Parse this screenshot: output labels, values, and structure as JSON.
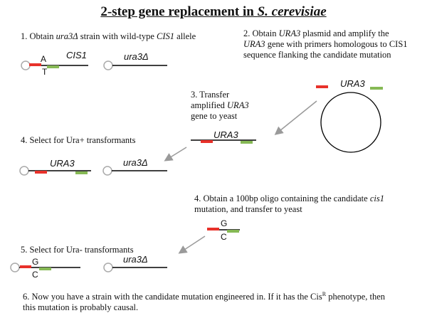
{
  "title": {
    "pre": "2-step gene replacement in ",
    "species": "S. cerevisiae"
  },
  "steps": {
    "s1": {
      "pre": "1. Obtain ",
      "gene": "ura3Δ",
      "mid": " strain with wild-type ",
      "gene2": "CIS1",
      "post": " allele"
    },
    "s2": {
      "l1_pre": "2. Obtain ",
      "l1_gene": "URA3",
      "l1_post": " plasmid and amplify the",
      "l2_gene": "URA3",
      "l2_post": " gene with primers homologous to CIS1",
      "l3": "sequence flanking the candidate mutation"
    },
    "s3": {
      "l1": "3. Transfer",
      "l2": "amplified ",
      "l2_gene": "URA3",
      "l3": "gene to yeast"
    },
    "s4": {
      "text": "4. Select for Ura+ transformants"
    },
    "s4b": {
      "l1": "4. Obtain a 100bp oligo containing the candidate ",
      "l1_gene": "cis1",
      "l2": "mutation, and transfer to yeast"
    },
    "s5": {
      "text": "5. Select for Ura- transformants"
    },
    "s6": {
      "l1_pre": "6. Now you have a strain with the candidate mutation engineered in. If it has the Cis",
      "l1_sup": "R",
      "l1_post": " phenotype, then",
      "l2": "this mutation is probably causal."
    }
  },
  "labels": {
    "cis1": "CIS1",
    "ura3d": "ura3Δ",
    "ura3": "URA3",
    "base_a": "A",
    "base_t": "T",
    "base_g": "G",
    "base_c": "C"
  },
  "colors": {
    "primer_left": "#e8312a",
    "primer_right": "#86b955",
    "line": "#000000",
    "arrow": "#9a9a9a",
    "centromere": "#aaaaaa"
  }
}
